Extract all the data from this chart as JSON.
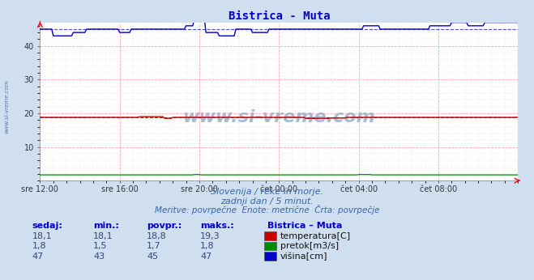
{
  "title": "Bistrica - Muta",
  "title_color": "#0000cc",
  "bg_color": "#d0dff0",
  "plot_bg_color": "#ffffff",
  "grid_color_major": "#ffaaaa",
  "grid_color_minor": "#e8e8e8",
  "x_tick_labels": [
    "sre 12:00",
    "sre 16:00",
    "sre 20:00",
    "čet 00:00",
    "čet 04:00",
    "čet 08:00"
  ],
  "x_tick_positions": [
    0,
    48,
    96,
    144,
    192,
    240
  ],
  "n_points": 289,
  "ylim": [
    0,
    47
  ],
  "yticks": [
    10,
    20,
    30,
    40
  ],
  "temp_avg": 18.8,
  "temp_color": "#cc0000",
  "pretok_avg": 1.7,
  "pretok_color": "#008800",
  "visina_avg": 45,
  "visina_color": "#0000cc",
  "subtitle1": "Slovenija / reke in morje.",
  "subtitle2": "zadnji dan / 5 minut.",
  "subtitle3": "Meritve: povrpečne  Enote: metrične  Črta: povrpečje",
  "table_headers": [
    "sedaj:",
    "min.:",
    "povpr.:",
    "maks.:"
  ],
  "table_data": [
    [
      "18,1",
      "18,1",
      "18,8",
      "19,3"
    ],
    [
      "1,8",
      "1,5",
      "1,7",
      "1,8"
    ],
    [
      "47",
      "43",
      "45",
      "47"
    ]
  ],
  "legend_title": "Bistrica – Muta",
  "legend_items": [
    "temperatura[C]",
    "pretok[m3/s]",
    "višina[cm]"
  ],
  "legend_colors": [
    "#cc0000",
    "#008800",
    "#0000cc"
  ],
  "watermark": "www.si-vreme.com",
  "watermark_color": "#9ab0cc",
  "left_label": "www.si-vreme.com",
  "text_color": "#3366aa"
}
